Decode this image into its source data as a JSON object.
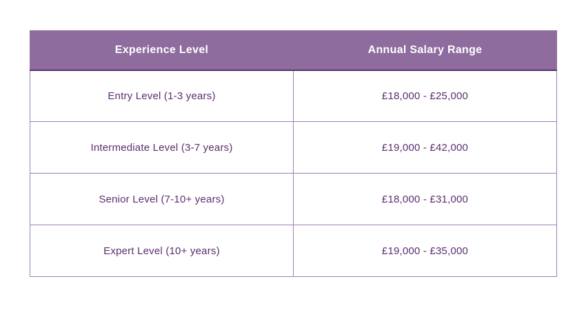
{
  "colors": {
    "header_bg": "#8E6C9E",
    "header_text": "#FFFFFF",
    "header_bottom_border": "#53316B",
    "body_text": "#5B2E6F",
    "grid_border": "#9C7FB5",
    "page_bg": "#FFFFFF"
  },
  "chart_data": {
    "type": "table",
    "title": "",
    "columns": [
      "Experience Level",
      "Annual Salary Range"
    ],
    "rows": [
      [
        "Entry Level (1-3 years)",
        "£18,000 - £25,000"
      ],
      [
        "Intermediate Level (3-7 years)",
        "£19,000 - £42,000"
      ],
      [
        "Senior Level (7-10+ years)",
        "£18,000 - £31,000"
      ],
      [
        "Expert Level (10+ years)",
        "£19,000 - £35,000"
      ]
    ]
  },
  "table": {
    "columns": [
      "Experience Level",
      "Annual Salary Range"
    ],
    "rows": [
      {
        "experience": "Entry Level (1-3 years)",
        "salary": "£18,000 - £25,000"
      },
      {
        "experience": "Intermediate Level (3-7 years)",
        "salary": "£19,000 - £42,000"
      },
      {
        "experience": "Senior Level (7-10+ years)",
        "salary": "£18,000 - £31,000"
      },
      {
        "experience": "Expert Level (10+ years)",
        "salary": "£19,000 - £35,000"
      }
    ]
  }
}
